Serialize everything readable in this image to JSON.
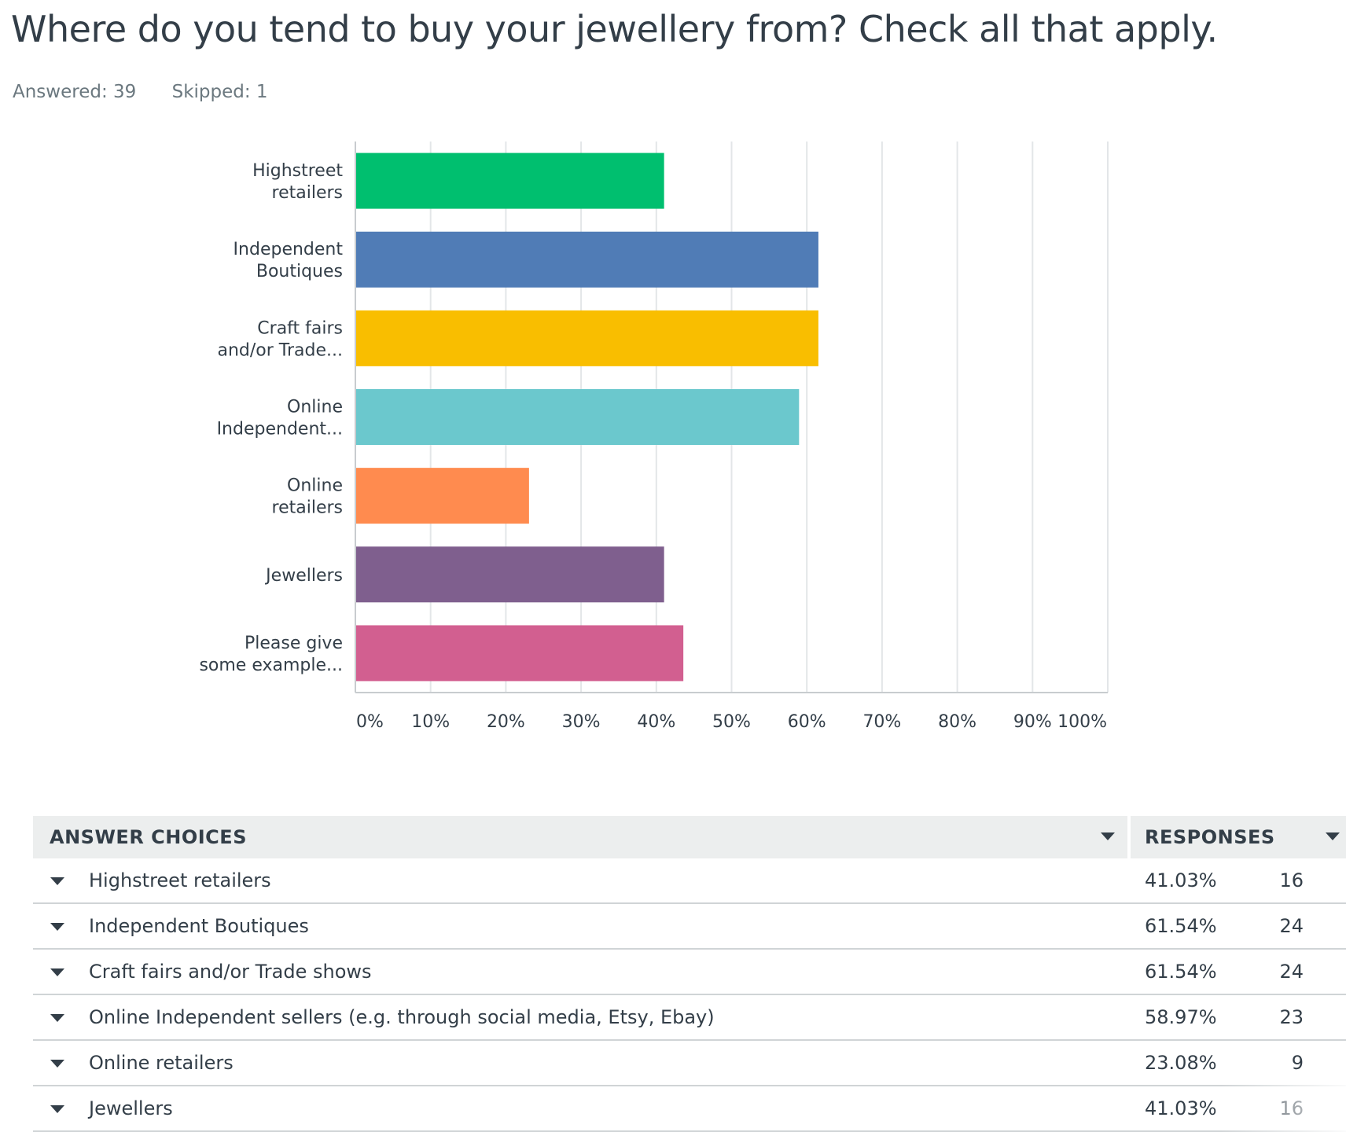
{
  "question": {
    "title": "Where do you tend to buy your jewellery from? Check all that apply.",
    "answered": "Answered: 39",
    "skipped": "Skipped: 1"
  },
  "chart_data": {
    "type": "bar",
    "orientation": "horizontal",
    "categories": [
      [
        "Highstreet",
        "retailers"
      ],
      [
        "Independent",
        "Boutiques"
      ],
      [
        "Craft fairs",
        "and/or Trade..."
      ],
      [
        "Online",
        "Independent..."
      ],
      [
        "Online",
        "retailers"
      ],
      [
        "Jewellers"
      ],
      [
        "Please give",
        "some example..."
      ]
    ],
    "values": [
      41.03,
      61.54,
      61.54,
      58.97,
      23.08,
      41.03,
      43.59
    ],
    "colors": [
      "#00bf6f",
      "#507cb6",
      "#f9be00",
      "#6bc8cd",
      "#ff8b4f",
      "#7f5f8e",
      "#d25f90"
    ],
    "xlim": [
      0,
      100
    ],
    "ticks": [
      "0%",
      "10%",
      "20%",
      "30%",
      "40%",
      "50%",
      "60%",
      "70%",
      "80%",
      "90%",
      "100%"
    ],
    "grid": true
  },
  "table": {
    "header_answer": "ANSWER CHOICES",
    "header_responses": "RESPONSES",
    "rows": [
      {
        "label": "Highstreet retailers",
        "pct": "41.03%",
        "count": "16"
      },
      {
        "label": "Independent Boutiques",
        "pct": "61.54%",
        "count": "24"
      },
      {
        "label": "Craft fairs and/or Trade shows",
        "pct": "61.54%",
        "count": "24"
      },
      {
        "label": "Online Independent sellers (e.g. through social media, Etsy, Ebay)",
        "pct": "58.97%",
        "count": "23"
      },
      {
        "label": "Online retailers",
        "pct": "23.08%",
        "count": "9"
      },
      {
        "label": "Jewellers",
        "pct": "41.03%",
        "count": "16"
      }
    ]
  }
}
